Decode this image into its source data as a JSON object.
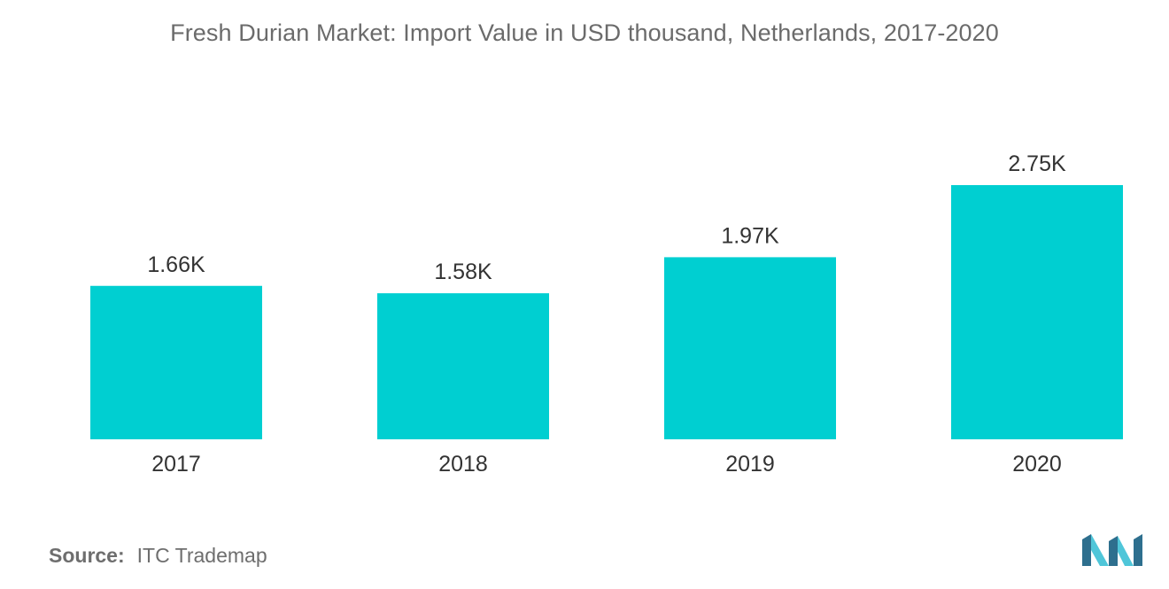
{
  "title": "Fresh Durian Market: Import Value in USD thousand, Netherlands, 2017-2020",
  "source": {
    "key": "Source:",
    "value": "ITC Trademap"
  },
  "colors": {
    "bar": "#00cfd1",
    "logo_dark": "#2e6f8e",
    "logo_light": "#4fc6d9"
  },
  "logo_icon": "mordor-intelligence-logo",
  "chart_data": {
    "type": "bar",
    "categories": [
      "2017",
      "2018",
      "2019",
      "2020"
    ],
    "values": [
      1.66,
      1.58,
      1.97,
      2.75
    ],
    "data_labels": [
      "1.66K",
      "1.58K",
      "1.97K",
      "2.75K"
    ],
    "title": "Fresh Durian Market: Import Value in USD thousand, Netherlands, 2017-2020",
    "xlabel": "",
    "ylabel": "",
    "ylim": [
      0,
      2.75
    ],
    "grid": false,
    "legend": "none"
  }
}
